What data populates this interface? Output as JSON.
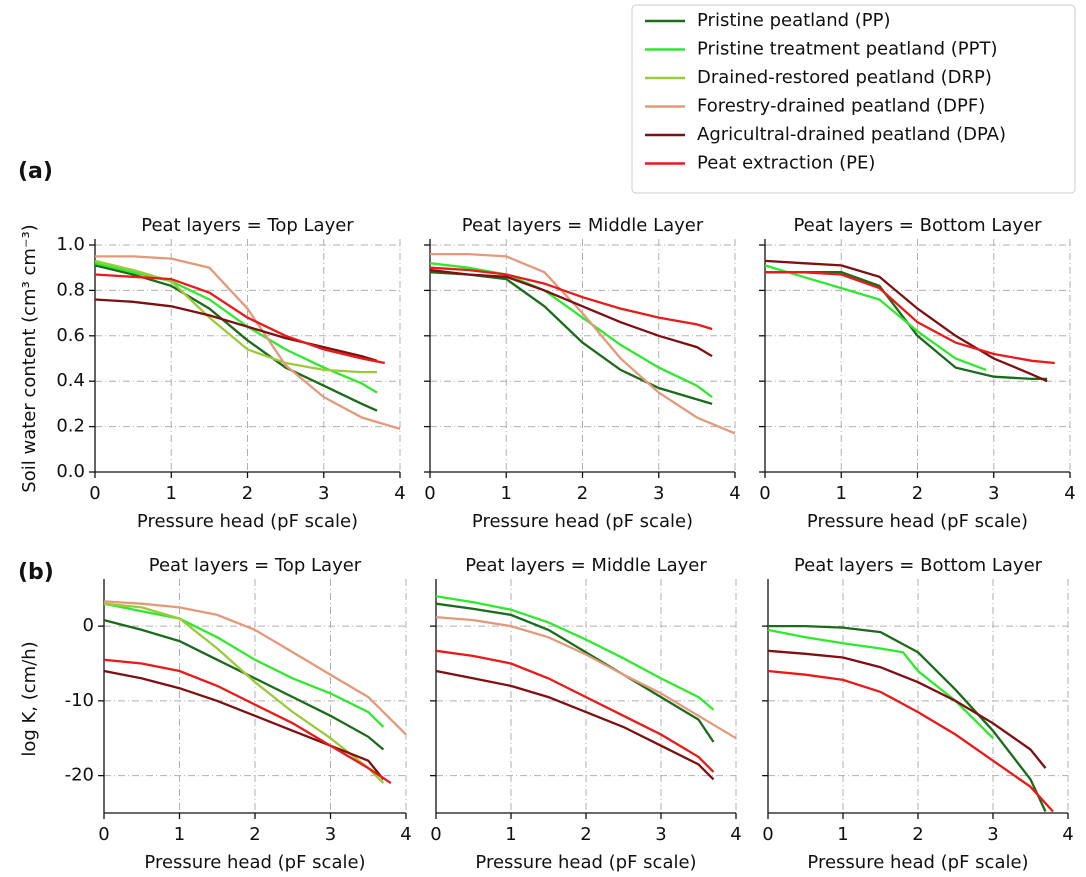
{
  "panel_labels": [
    "(a)",
    "(b)"
  ],
  "legend": [
    {
      "name": "Pristine peatland (PP)",
      "color": "#1b6b1b"
    },
    {
      "name": "Pristine treatment peatland (PPT)",
      "color": "#2fe82f"
    },
    {
      "name": "Drained-restored peatland (DRP)",
      "color": "#9acb3a"
    },
    {
      "name": "Forestry-drained peatland (DPF)",
      "color": "#e39a7b"
    },
    {
      "name": "Agricultral-drained peatland (DPA)",
      "color": "#7d1111"
    },
    {
      "name": "Peat extraction (PE)",
      "color": "#e81a1a"
    }
  ],
  "chart_data": [
    {
      "type": "line",
      "title": "Peat layers = Top Layer",
      "xlabel": "Pressure head (pF scale)",
      "ylabel": "Soil water content (cm³ cm⁻³)",
      "xlim": [
        0,
        4
      ],
      "ylim": [
        0,
        1
      ],
      "xticks": [
        0,
        1,
        2,
        3,
        4
      ],
      "yticks": [
        {
          "value": 0,
          "label": "0.0"
        },
        0.2,
        0.4,
        0.6,
        0.8,
        {
          "value": 1,
          "label": "1.0"
        }
      ],
      "grid": true,
      "series": [
        {
          "color": "#1b6b1b",
          "x": [
            0,
            0.5,
            1,
            1.5,
            2,
            2.5,
            3,
            3.5,
            3.7
          ],
          "values": [
            0.91,
            0.87,
            0.82,
            0.72,
            0.58,
            0.46,
            0.38,
            0.3,
            0.27
          ]
        },
        {
          "color": "#2fe82f",
          "x": [
            0,
            0.5,
            1,
            1.5,
            2,
            2.5,
            3,
            3.5,
            3.7
          ],
          "values": [
            0.92,
            0.88,
            0.84,
            0.76,
            0.64,
            0.54,
            0.46,
            0.39,
            0.35
          ]
        },
        {
          "color": "#9acb3a",
          "x": [
            0,
            0.5,
            1,
            1.5,
            2,
            2.5,
            3,
            3.5,
            3.7
          ],
          "values": [
            0.93,
            0.89,
            0.84,
            0.68,
            0.54,
            0.48,
            0.45,
            0.44,
            0.44
          ]
        },
        {
          "color": "#e39a7b",
          "x": [
            0,
            0.5,
            1,
            1.5,
            2,
            2.5,
            3,
            3.5,
            4
          ],
          "values": [
            0.95,
            0.95,
            0.94,
            0.9,
            0.72,
            0.47,
            0.33,
            0.24,
            0.19
          ]
        },
        {
          "color": "#7d1111",
          "x": [
            0,
            0.5,
            1,
            1.5,
            2,
            2.5,
            3,
            3.5,
            3.7
          ],
          "values": [
            0.76,
            0.75,
            0.73,
            0.69,
            0.64,
            0.59,
            0.55,
            0.51,
            0.49
          ]
        },
        {
          "color": "#e81a1a",
          "x": [
            0,
            0.5,
            1,
            1.5,
            2,
            2.5,
            3,
            3.5,
            3.8
          ],
          "values": [
            0.87,
            0.86,
            0.85,
            0.79,
            0.68,
            0.6,
            0.54,
            0.5,
            0.48
          ]
        }
      ]
    },
    {
      "type": "line",
      "title": "Peat layers = Middle Layer",
      "xlabel": "Pressure head (pF scale)",
      "xlim": [
        0,
        4
      ],
      "ylim": [
        0,
        1
      ],
      "xticks": [
        0,
        1,
        2,
        3,
        4
      ],
      "yticks": [
        0,
        0.2,
        0.4,
        0.6,
        0.8,
        1
      ],
      "grid": true,
      "series": [
        {
          "color": "#1b6b1b",
          "x": [
            0,
            0.5,
            1,
            1.5,
            2,
            2.5,
            3,
            3.5,
            3.7
          ],
          "values": [
            0.88,
            0.87,
            0.85,
            0.73,
            0.57,
            0.45,
            0.37,
            0.32,
            0.3
          ]
        },
        {
          "color": "#2fe82f",
          "x": [
            0,
            0.5,
            1,
            1.5,
            2,
            2.5,
            3,
            3.5,
            3.7
          ],
          "values": [
            0.92,
            0.9,
            0.87,
            0.8,
            0.68,
            0.56,
            0.46,
            0.38,
            0.33
          ]
        },
        {
          "color": "#e39a7b",
          "x": [
            0,
            0.5,
            1,
            1.5,
            2,
            2.5,
            3,
            3.5,
            4
          ],
          "values": [
            0.96,
            0.96,
            0.95,
            0.88,
            0.7,
            0.5,
            0.35,
            0.24,
            0.17
          ]
        },
        {
          "color": "#7d1111",
          "x": [
            0,
            0.5,
            1,
            1.5,
            2,
            2.5,
            3,
            3.5,
            3.7
          ],
          "values": [
            0.89,
            0.87,
            0.86,
            0.8,
            0.73,
            0.66,
            0.6,
            0.55,
            0.51
          ]
        },
        {
          "color": "#e81a1a",
          "x": [
            0,
            0.5,
            1,
            1.5,
            2,
            2.5,
            3,
            3.5,
            3.7
          ],
          "values": [
            0.9,
            0.89,
            0.87,
            0.83,
            0.77,
            0.72,
            0.68,
            0.65,
            0.63
          ]
        }
      ]
    },
    {
      "type": "line",
      "title": "Peat layers = Bottom Layer",
      "xlabel": "Pressure head (pF scale)",
      "xlim": [
        0,
        4
      ],
      "ylim": [
        0,
        1
      ],
      "xticks": [
        0,
        1,
        2,
        3,
        4
      ],
      "yticks": [
        0,
        0.2,
        0.4,
        0.6,
        0.8,
        1
      ],
      "grid": true,
      "series": [
        {
          "color": "#1b6b1b",
          "x": [
            0,
            0.5,
            1,
            1.5,
            2,
            2.5,
            3,
            3.5,
            3.7
          ],
          "values": [
            0.88,
            0.88,
            0.88,
            0.82,
            0.6,
            0.46,
            0.42,
            0.41,
            0.41
          ]
        },
        {
          "color": "#2fe82f",
          "x": [
            0,
            0.5,
            1,
            1.5,
            2,
            2.5,
            2.9
          ],
          "values": [
            0.91,
            0.86,
            0.81,
            0.76,
            0.62,
            0.5,
            0.45
          ]
        },
        {
          "color": "#7d1111",
          "x": [
            0,
            0.5,
            1,
            1.5,
            2,
            2.5,
            3,
            3.5,
            3.7
          ],
          "values": [
            0.93,
            0.92,
            0.91,
            0.86,
            0.72,
            0.6,
            0.5,
            0.43,
            0.4
          ]
        },
        {
          "color": "#e81a1a",
          "x": [
            0,
            0.5,
            1,
            1.5,
            2,
            2.5,
            3,
            3.5,
            3.8
          ],
          "values": [
            0.88,
            0.88,
            0.87,
            0.81,
            0.66,
            0.57,
            0.52,
            0.49,
            0.48
          ]
        }
      ]
    },
    {
      "type": "line",
      "title": "Peat layers = Top Layer",
      "xlabel": "Pressure head (pF scale)",
      "ylabel": "log K, (cm/h)",
      "xlim": [
        0,
        4
      ],
      "ylim": [
        -25,
        5.5
      ],
      "xticks": [
        0,
        1,
        2,
        3,
        4
      ],
      "yticks": [
        -20,
        -10,
        0
      ],
      "grid": true,
      "series": [
        {
          "color": "#1b6b1b",
          "x": [
            0,
            0.5,
            1,
            1.5,
            2,
            2.5,
            3,
            3.5,
            3.7
          ],
          "values": [
            0.8,
            -0.5,
            -2,
            -4.5,
            -7,
            -9.5,
            -12,
            -14.8,
            -16.5
          ]
        },
        {
          "color": "#2fe82f",
          "x": [
            0,
            0.5,
            1,
            1.5,
            2,
            2.5,
            3,
            3.5,
            3.7
          ],
          "values": [
            3,
            2,
            1,
            -1.5,
            -4.5,
            -7,
            -9,
            -11.5,
            -13.5
          ]
        },
        {
          "color": "#9acb3a",
          "x": [
            0,
            0.5,
            1,
            1.5,
            2,
            2.5,
            3,
            3.5,
            3.7
          ],
          "values": [
            3,
            2.5,
            1,
            -3,
            -7.5,
            -11.5,
            -15,
            -19,
            -21
          ]
        },
        {
          "color": "#e39a7b",
          "x": [
            0,
            0.5,
            1,
            1.5,
            2,
            2.5,
            3,
            3.5,
            4
          ],
          "values": [
            3.3,
            3,
            2.5,
            1.5,
            -0.5,
            -3.5,
            -6.5,
            -9.5,
            -14.5
          ]
        },
        {
          "color": "#7d1111",
          "x": [
            0,
            0.5,
            1,
            1.5,
            2,
            2.5,
            3,
            3.5,
            3.7
          ],
          "values": [
            -6,
            -7,
            -8.3,
            -10,
            -12,
            -14,
            -16,
            -18,
            -20.5
          ]
        },
        {
          "color": "#e81a1a",
          "x": [
            0,
            0.5,
            1,
            1.5,
            2,
            2.5,
            3,
            3.5,
            3.8
          ],
          "values": [
            -4.5,
            -5,
            -6,
            -8,
            -10.5,
            -13,
            -16,
            -19,
            -21
          ]
        }
      ]
    },
    {
      "type": "line",
      "title": "Peat layers = Middle Layer",
      "xlabel": "Pressure head (pF scale)",
      "xlim": [
        0,
        4
      ],
      "ylim": [
        -25,
        5.5
      ],
      "xticks": [
        0,
        1,
        2,
        3,
        4
      ],
      "yticks": [
        -20,
        -10,
        0
      ],
      "grid": true,
      "series": [
        {
          "color": "#1b6b1b",
          "x": [
            0,
            0.5,
            1,
            1.5,
            2,
            2.5,
            3,
            3.5,
            3.7
          ],
          "values": [
            3,
            2.3,
            1.5,
            -0.5,
            -3.5,
            -6.5,
            -9.5,
            -12.5,
            -15.5
          ]
        },
        {
          "color": "#2fe82f",
          "x": [
            0,
            0.5,
            1,
            1.5,
            2,
            2.5,
            3,
            3.5,
            3.7
          ],
          "values": [
            4,
            3.2,
            2.2,
            0.5,
            -1.8,
            -4.3,
            -7,
            -9.5,
            -11.2
          ]
        },
        {
          "color": "#e39a7b",
          "x": [
            0,
            0.5,
            1,
            1.5,
            2,
            2.5,
            3,
            3.5,
            4
          ],
          "values": [
            1.2,
            0.8,
            0,
            -1.5,
            -3.8,
            -6.5,
            -9,
            -12,
            -15
          ]
        },
        {
          "color": "#7d1111",
          "x": [
            0,
            0.5,
            1,
            1.5,
            2,
            2.5,
            3,
            3.5,
            3.7
          ],
          "values": [
            -6,
            -7,
            -8,
            -9.5,
            -11.5,
            -13.5,
            -16,
            -18.5,
            -20.5
          ]
        },
        {
          "color": "#e81a1a",
          "x": [
            0,
            0.5,
            1,
            1.5,
            2,
            2.5,
            3,
            3.5,
            3.7
          ],
          "values": [
            -3.3,
            -4,
            -5,
            -7,
            -9.5,
            -12,
            -14.5,
            -17.5,
            -19.5
          ]
        }
      ]
    },
    {
      "type": "line",
      "title": "Peat layers = Bottom Layer",
      "xlabel": "Pressure head (pF scale)",
      "xlim": [
        0,
        4
      ],
      "ylim": [
        -25,
        5.5
      ],
      "xticks": [
        0,
        1,
        2,
        3,
        4
      ],
      "yticks": [
        -20,
        -10,
        0
      ],
      "grid": true,
      "series": [
        {
          "color": "#1b6b1b",
          "x": [
            0,
            0.5,
            1,
            1.5,
            2,
            2.5,
            3,
            3.5,
            3.7
          ],
          "values": [
            0,
            0,
            -0.2,
            -0.8,
            -3.5,
            -8.5,
            -14,
            -20.5,
            -24.8
          ]
        },
        {
          "color": "#2fe82f",
          "x": [
            0,
            0.5,
            1,
            1.5,
            1.8,
            2,
            2.5,
            3
          ],
          "values": [
            -0.5,
            -1.5,
            -2.3,
            -3,
            -3.5,
            -6,
            -10,
            -15
          ]
        },
        {
          "color": "#7d1111",
          "x": [
            0,
            0.5,
            1,
            1.5,
            2,
            2.5,
            3,
            3.5,
            3.7
          ],
          "values": [
            -3.3,
            -3.7,
            -4.2,
            -5.5,
            -7.5,
            -10,
            -13,
            -16.5,
            -19
          ]
        },
        {
          "color": "#e81a1a",
          "x": [
            0,
            0.5,
            1,
            1.5,
            2,
            2.5,
            3,
            3.5,
            3.8
          ],
          "values": [
            -6,
            -6.5,
            -7.2,
            -8.8,
            -11.5,
            -14.5,
            -18,
            -21.5,
            -24.8
          ]
        }
      ]
    }
  ]
}
